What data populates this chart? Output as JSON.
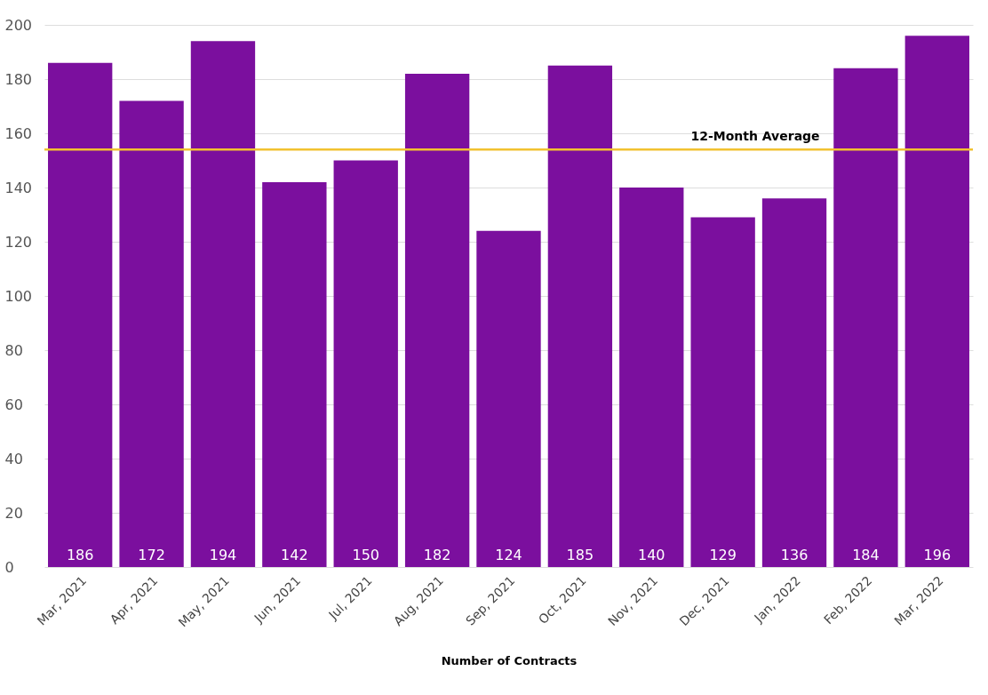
{
  "chart_data": {
    "type": "bar",
    "categories": [
      "Mar, 2021",
      "Apr, 2021",
      "May, 2021",
      "Jun, 2021",
      "Jul, 2021",
      "Aug, 2021",
      "Sep, 2021",
      "Oct, 2021",
      "Nov, 2021",
      "Dec, 2021",
      "Jan, 2022",
      "Feb, 2022",
      "Mar, 2022"
    ],
    "values": [
      186,
      172,
      194,
      142,
      150,
      182,
      124,
      185,
      140,
      129,
      136,
      184,
      196
    ],
    "color": "#7b0f9e",
    "xlabel": "Number of Contracts",
    "ylim": [
      0,
      200
    ],
    "yticks": [
      0,
      20,
      40,
      60,
      80,
      100,
      120,
      140,
      160,
      180,
      200
    ],
    "grid": "y",
    "data_labels": true,
    "ref_lines": [
      {
        "axis": "y",
        "value": 154,
        "label": "12-Month Average",
        "color": "#f2c230"
      }
    ]
  }
}
